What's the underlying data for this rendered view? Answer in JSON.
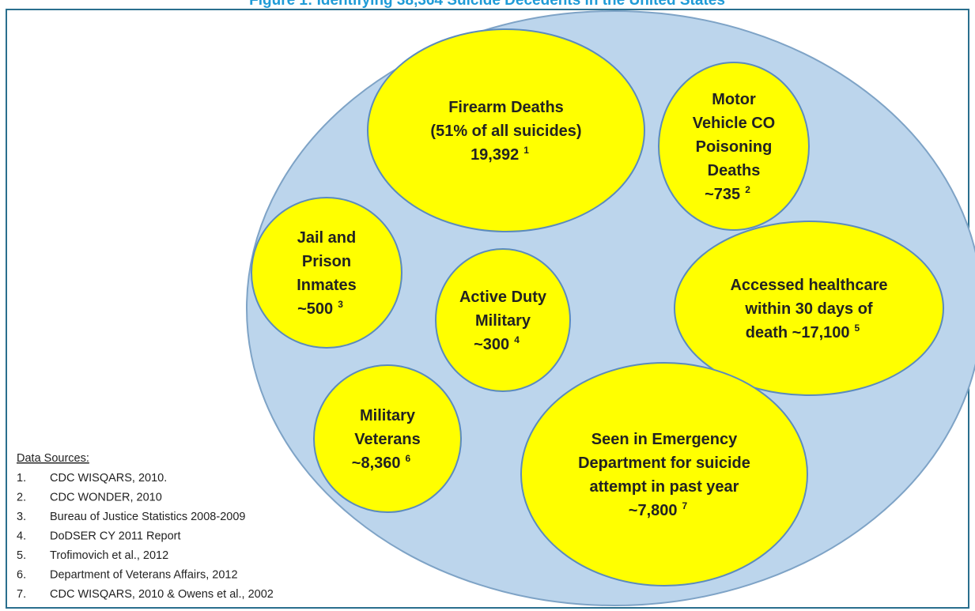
{
  "title": "Figure 1: Identifying 38,364 Suicide Decedents in the United States",
  "nodes": [
    {
      "lines": [
        "Firearm Deaths",
        "(51% of all suicides)",
        "19,392"
      ],
      "ref": "1"
    },
    {
      "lines": [
        "Motor",
        "Vehicle CO",
        "Poisoning",
        "Deaths",
        "~735"
      ],
      "ref": "2"
    },
    {
      "lines": [
        "Jail and",
        "Prison",
        "Inmates",
        "~500"
      ],
      "ref": "3"
    },
    {
      "lines": [
        "Active Duty",
        "Military",
        "~300"
      ],
      "ref": "4"
    },
    {
      "lines": [
        "Accessed healthcare",
        "within 30 days of",
        "death ~17,100"
      ],
      "ref": "5"
    },
    {
      "lines": [
        "Military",
        "Veterans",
        "~8,360"
      ],
      "ref": "6"
    },
    {
      "lines": [
        "Seen in Emergency",
        "Department for suicide",
        "attempt in past year",
        "~7,800"
      ],
      "ref": "7"
    }
  ],
  "sources": {
    "header": "Data Sources:",
    "items": [
      {
        "number": "1.",
        "text": "CDC WISQARS, 2010."
      },
      {
        "number": "2.",
        "text": "CDC WONDER, 2010"
      },
      {
        "number": "3.",
        "text": "Bureau of Justice Statistics 2008-2009"
      },
      {
        "number": "4.",
        "text": "DoDSER CY 2011 Report"
      },
      {
        "number": "5.",
        "text": "Trofimovich et al., 2012"
      },
      {
        "number": "6.",
        "text": "Department of Veterans Affairs, 2012"
      },
      {
        "number": "7.",
        "text": "CDC WISQARS, 2010 & Owens et al., 2002"
      }
    ]
  }
}
